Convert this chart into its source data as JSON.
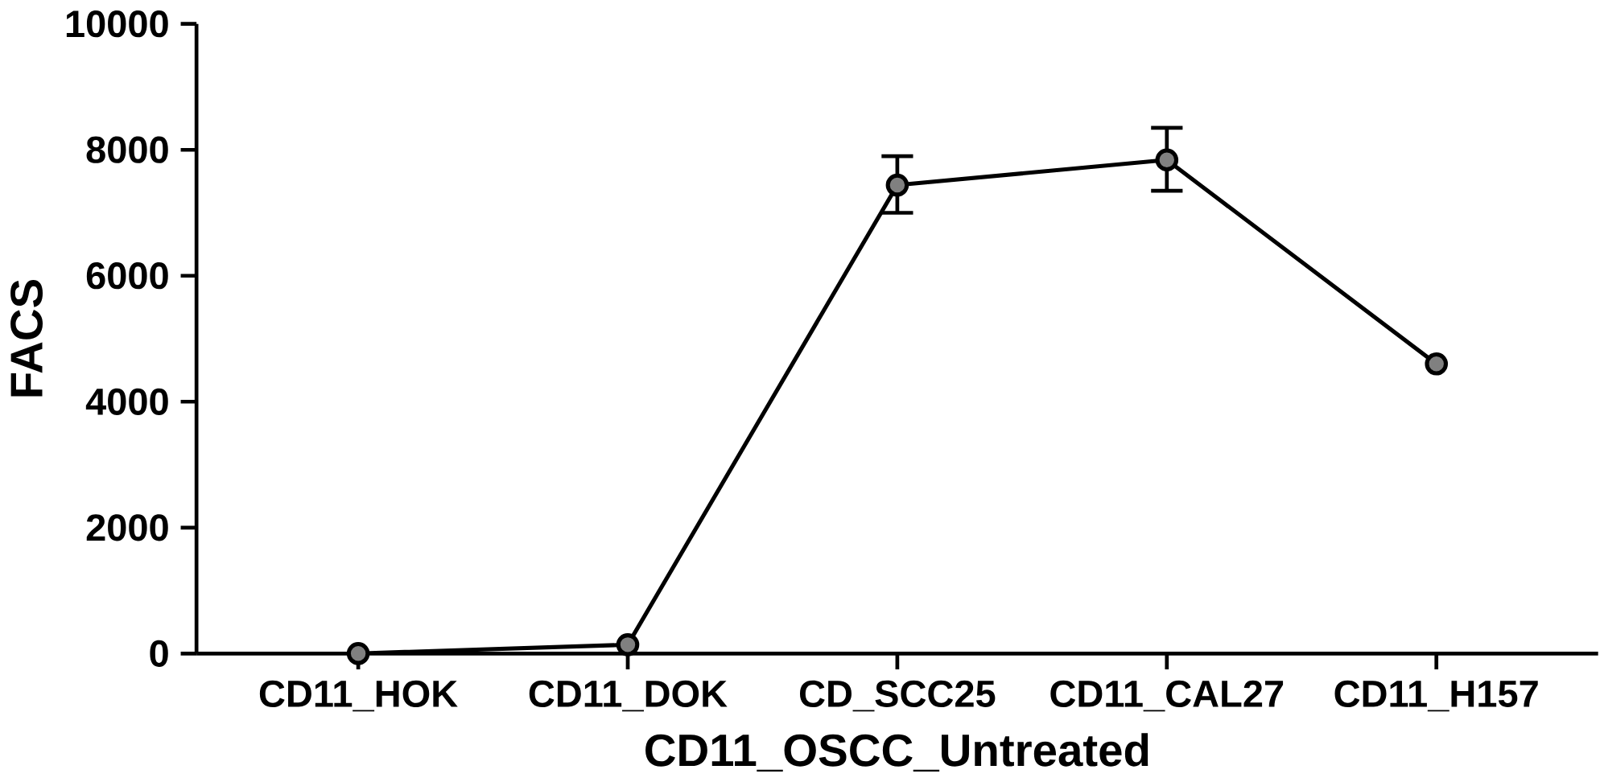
{
  "chart_data": {
    "type": "line",
    "xlabel": "CD11_OSCC_Untreated",
    "ylabel": "FACS",
    "categories": [
      "CD11_HOK",
      "CD11_DOK",
      "CD_SCC25",
      "CD11_CAL27",
      "CD11_H157"
    ],
    "series": [
      {
        "color": "#000000",
        "values": [
          0,
          140,
          7440,
          7840,
          4600
        ],
        "errors": [
          null,
          null,
          [
            7000,
            7900
          ],
          [
            7350,
            8350
          ],
          null
        ]
      }
    ],
    "ylim": [
      0,
      10000
    ],
    "yticks": [
      0,
      2000,
      4000,
      6000,
      8000,
      10000
    ],
    "grid": false,
    "marker": "circle",
    "line_style": "solid"
  }
}
